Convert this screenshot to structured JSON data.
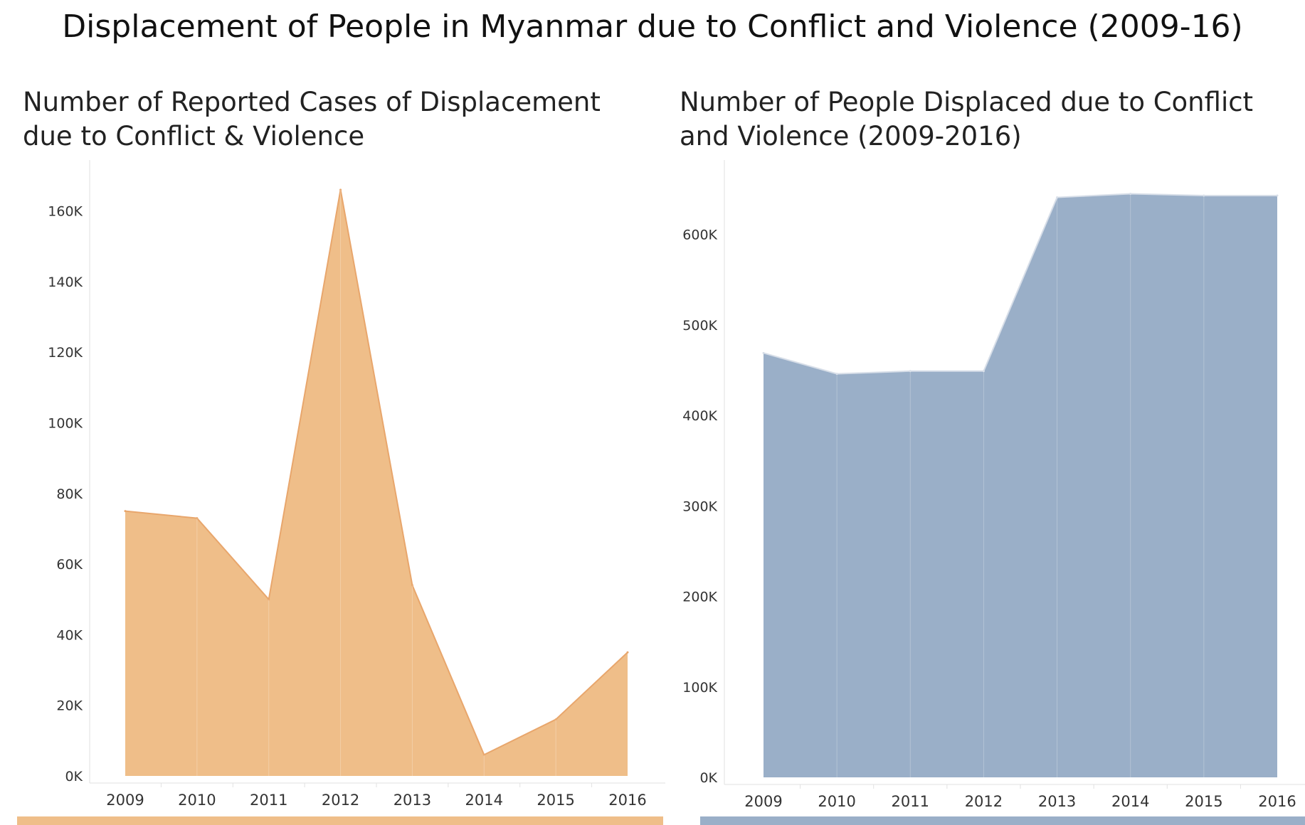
{
  "dashboard": {
    "title": "Displacement of People in Myanmar due to Conflict and Violence (2009-16)"
  },
  "colors": {
    "left_fill": "#efbe89",
    "left_line": "#e8a66c",
    "right_fill": "#9aafc8",
    "right_line": "#d7dee8",
    "axis": "#e2e2e2"
  },
  "chart_data": [
    {
      "type": "area",
      "title": "Number of Reported Cases of Displacement due to Conflict & Violence",
      "x": [
        "2009",
        "2010",
        "2011",
        "2012",
        "2013",
        "2014",
        "2015",
        "2016"
      ],
      "values": [
        75000,
        73000,
        50000,
        166000,
        54000,
        6000,
        16000,
        35000
      ],
      "yticks": [
        0,
        20000,
        40000,
        60000,
        80000,
        100000,
        120000,
        140000,
        160000
      ],
      "ytick_labels": [
        "0K",
        "20K",
        "40K",
        "60K",
        "80K",
        "100K",
        "120K",
        "140K",
        "160K"
      ],
      "ylim": [
        0,
        170000
      ],
      "xlabel": "",
      "ylabel": ""
    },
    {
      "type": "area",
      "title": "Number of People Displaced due to Conflict and Violence (2009-2016)",
      "x": [
        "2009",
        "2010",
        "2011",
        "2012",
        "2013",
        "2014",
        "2015",
        "2016"
      ],
      "values": [
        469000,
        446000,
        449000,
        449000,
        641000,
        645000,
        643000,
        643000
      ],
      "yticks": [
        0,
        100000,
        200000,
        300000,
        400000,
        500000,
        600000
      ],
      "ytick_labels": [
        "0K",
        "100K",
        "200K",
        "300K",
        "400K",
        "500K",
        "600K"
      ],
      "ylim": [
        0,
        665000
      ],
      "xlabel": "",
      "ylabel": ""
    }
  ]
}
